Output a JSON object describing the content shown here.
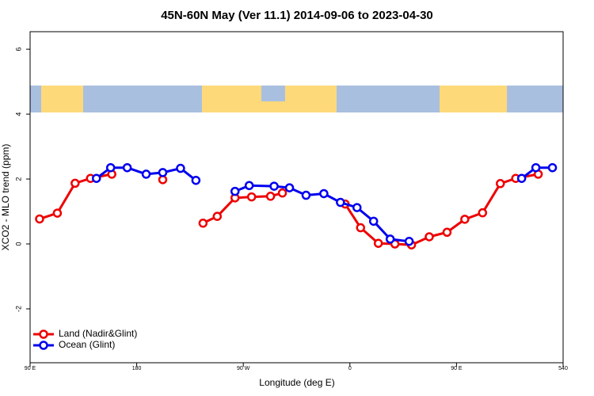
{
  "chart_data": {
    "type": "line",
    "title": "45N-60N May (Ver 11.1)   2014-09-06 to 2023-04-30",
    "x_label": "Longitude (deg E)",
    "y_label": "XCO2 - MLO trend (ppm)",
    "xlim": [
      90,
      540
    ],
    "xticks": [
      {
        "value": 90,
        "label": "90 E"
      },
      180,
      {
        "value": 270,
        "label": "90 W"
      },
      {
        "value": 360,
        "label": "0"
      },
      {
        "value": 450,
        "label": "90 E"
      },
      540
    ],
    "ylim": [
      -3.66,
      6.54
    ],
    "yticks": [
      -2,
      0,
      2,
      4,
      6
    ],
    "legend": "bottom-left",
    "series": [
      {
        "name": "Land (Nadir&Glint)",
        "color": "#ee0000",
        "x": [
          98,
          113,
          128,
          141,
          159,
          null,
          202,
          null,
          236,
          248,
          263,
          277,
          293,
          303,
          null,
          356,
          369,
          384,
          398,
          412,
          427,
          442,
          457,
          472,
          487,
          500,
          519
        ],
        "values": [
          0.77,
          0.95,
          1.87,
          2.02,
          2.15,
          null,
          1.98,
          null,
          0.64,
          0.85,
          1.42,
          1.45,
          1.47,
          1.57,
          null,
          1.23,
          0.5,
          0.02,
          0.0,
          -0.03,
          0.22,
          0.36,
          0.76,
          0.96,
          1.86,
          2.02,
          2.15
        ]
      },
      {
        "name": "Ocean (Glint)",
        "color": "#0000ee",
        "x": [
          146,
          158,
          172,
          188,
          202,
          217,
          230,
          null,
          263,
          275,
          296,
          309,
          323,
          338,
          352,
          366,
          380,
          394,
          410,
          null,
          505,
          517,
          531
        ],
        "values": [
          2.02,
          2.35,
          2.35,
          2.15,
          2.2,
          2.33,
          1.96,
          null,
          1.62,
          1.8,
          1.78,
          1.73,
          1.5,
          1.55,
          1.28,
          1.12,
          0.7,
          0.15,
          0.08,
          null,
          2.02,
          2.35,
          2.35
        ]
      }
    ]
  }
}
